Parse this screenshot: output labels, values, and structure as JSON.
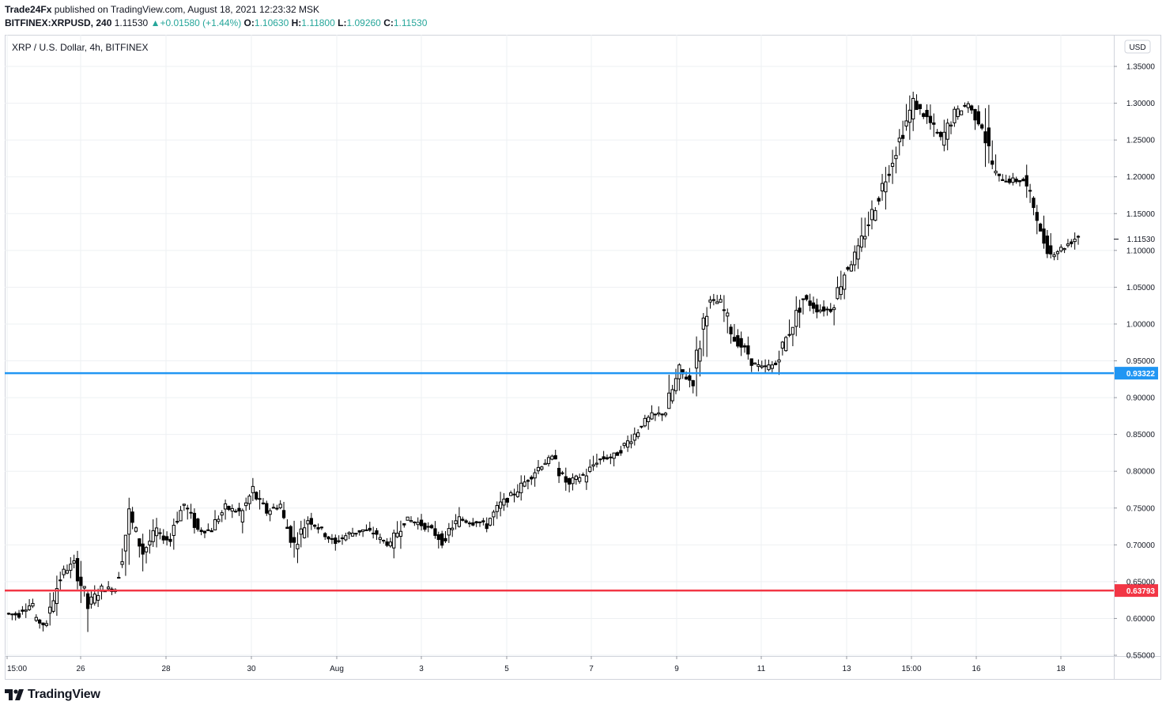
{
  "header": {
    "line1_author": "Trade24Fx",
    "line1_rest": " published on TradingView.com, August 18, 2021 12:23:32 MSK",
    "symbol": "BITFINEX:XRPUSD, 240",
    "last": "1.11530",
    "arrow": "▲",
    "change": "+0.01580 (+1.44%)",
    "o_label": "O:",
    "o": "1.10630",
    "h_label": "H:",
    "h": "1.11800",
    "l_label": "L:",
    "l": "1.09260",
    "c_label": "C:",
    "c": "1.11530"
  },
  "chart_label": "XRP / U.S. Dollar, 4h, BITFINEX",
  "currency_badge": "USD",
  "footer_brand": "TradingView",
  "colors": {
    "blue_line": "#2196f3",
    "red_line": "#f23645",
    "grid": "#eef0f3",
    "candle": "#000000"
  },
  "chart_data": {
    "type": "candlestick",
    "symbol": "XRP / U.S. Dollar",
    "interval": "4h",
    "ylim": [
      0.55,
      1.37
    ],
    "y_ticks": [
      "1.35000",
      "1.30000",
      "1.25000",
      "1.20000",
      "1.15000",
      "1.10000",
      "1.05000",
      "1.00000",
      "0.95000",
      "0.90000",
      "0.85000",
      "0.80000",
      "0.75000",
      "0.70000",
      "0.65000",
      "0.60000",
      "0.55000"
    ],
    "x_ticks": [
      "15:00",
      "26",
      "28",
      "30",
      "Aug",
      "3",
      "5",
      "7",
      "9",
      "11",
      "13",
      "15:00",
      "16",
      "18"
    ],
    "last_price": "1.11530",
    "horizontal_lines": [
      {
        "value": 0.93322,
        "label": "0.93322",
        "color": "#2196f3"
      },
      {
        "value": 0.63793,
        "label": "0.63793",
        "color": "#f23645"
      }
    ],
    "anchors": [
      [
        0.607,
        0.605
      ],
      [
        0.61,
        0.62
      ],
      [
        0.6,
        0.59
      ],
      [
        0.605,
        0.655
      ],
      [
        0.66,
        0.675
      ],
      [
        0.68,
        0.615
      ],
      [
        0.62,
        0.64
      ],
      [
        0.64,
        0.64
      ],
      [
        0.645,
        0.74
      ],
      [
        0.74,
        0.69
      ],
      [
        0.69,
        0.72
      ],
      [
        0.715,
        0.705
      ],
      [
        0.72,
        0.755
      ],
      [
        0.755,
        0.72
      ],
      [
        0.72,
        0.72
      ],
      [
        0.725,
        0.75
      ],
      [
        0.75,
        0.745
      ],
      [
        0.735,
        0.775
      ],
      [
        0.77,
        0.745
      ],
      [
        0.745,
        0.755
      ],
      [
        0.745,
        0.7
      ],
      [
        0.7,
        0.735
      ],
      [
        0.735,
        0.72
      ],
      [
        0.72,
        0.7
      ],
      [
        0.705,
        0.715
      ],
      [
        0.715,
        0.72
      ],
      [
        0.72,
        0.715
      ],
      [
        0.71,
        0.7
      ],
      [
        0.7,
        0.735
      ],
      [
        0.735,
        0.73
      ],
      [
        0.73,
        0.72
      ],
      [
        0.72,
        0.7
      ],
      [
        0.715,
        0.735
      ],
      [
        0.735,
        0.73
      ],
      [
        0.735,
        0.725
      ],
      [
        0.73,
        0.755
      ],
      [
        0.755,
        0.77
      ],
      [
        0.77,
        0.79
      ],
      [
        0.79,
        0.81
      ],
      [
        0.81,
        0.82
      ],
      [
        0.805,
        0.78
      ],
      [
        0.785,
        0.795
      ],
      [
        0.79,
        0.815
      ],
      [
        0.815,
        0.82
      ],
      [
        0.815,
        0.835
      ],
      [
        0.835,
        0.855
      ],
      [
        0.86,
        0.875
      ],
      [
        0.875,
        0.88
      ],
      [
        0.885,
        0.935
      ],
      [
        0.935,
        0.92
      ],
      [
        0.925,
        1.03
      ],
      [
        1.03,
        1.03
      ],
      [
        1.03,
        0.98
      ],
      [
        0.98,
        0.96
      ],
      [
        0.95,
        0.94
      ],
      [
        0.94,
        0.945
      ],
      [
        0.95,
        0.99
      ],
      [
        0.99,
        1.035
      ],
      [
        1.035,
        1.02
      ],
      [
        1.02,
        1.02
      ],
      [
        1.02,
        1.07
      ],
      [
        1.07,
        1.1
      ],
      [
        1.1,
        1.15
      ],
      [
        1.15,
        1.2
      ],
      [
        1.2,
        1.25
      ],
      [
        1.25,
        1.3
      ],
      [
        1.3,
        1.28
      ],
      [
        1.28,
        1.25
      ],
      [
        1.25,
        1.285
      ],
      [
        1.285,
        1.3
      ],
      [
        1.295,
        1.27
      ],
      [
        1.27,
        1.2
      ],
      [
        1.2,
        1.195
      ],
      [
        1.195,
        1.195
      ],
      [
        1.195,
        1.15
      ],
      [
        1.13,
        1.095
      ],
      [
        1.095,
        1.105
      ],
      [
        1.105,
        1.12
      ]
    ]
  }
}
